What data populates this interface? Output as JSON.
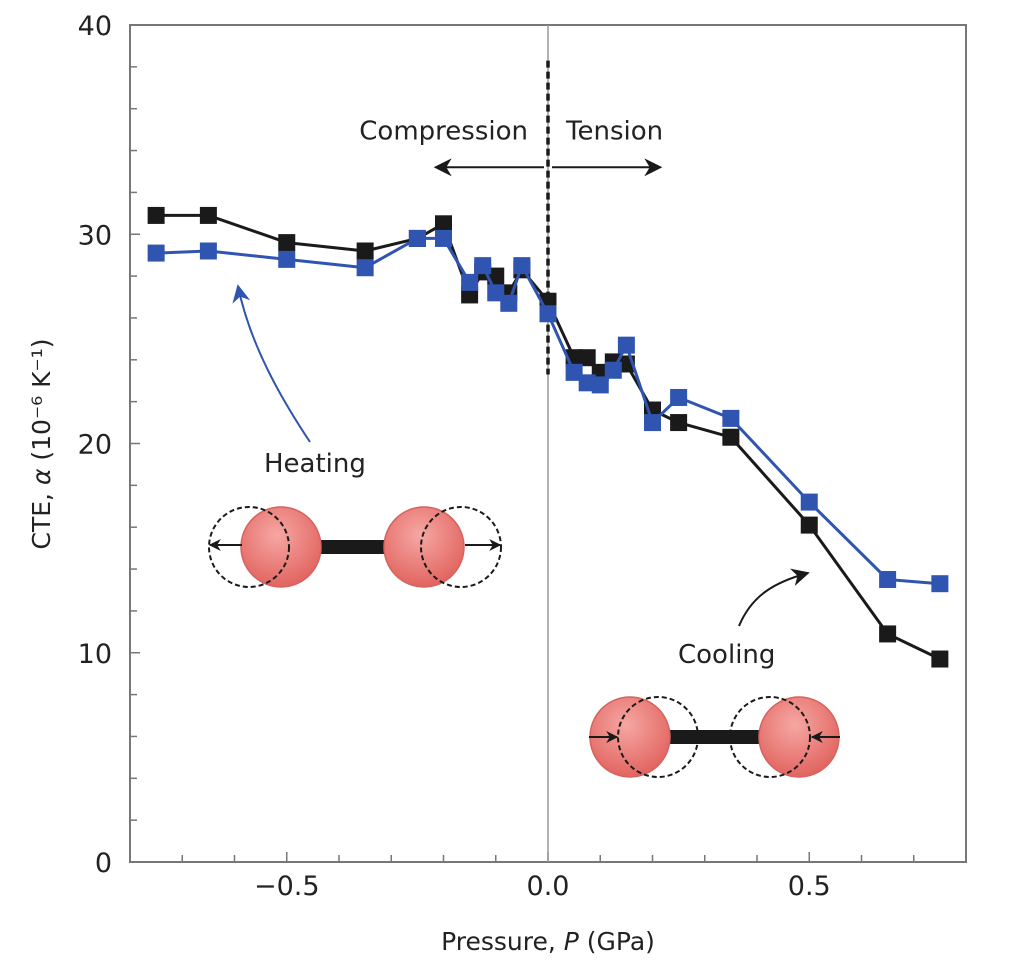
{
  "chart_data": {
    "type": "line",
    "title": "",
    "xlabel": "Pressure, P (GPa)",
    "xlabel_parts": {
      "prefix": "Pressure, ",
      "italic": "P",
      "suffix": " (GPa)"
    },
    "ylabel": "CTE, α (10⁻⁶ K⁻¹)",
    "ylabel_parts": {
      "prefix": "CTE, ",
      "italic": "α",
      "suffix": " (10⁻⁶ K⁻¹)"
    },
    "xlim": [
      -0.8,
      0.8
    ],
    "ylim": [
      0,
      40
    ],
    "x_major_ticks": [
      -0.5,
      0.0,
      0.5
    ],
    "x_tick_labels": [
      "−0.5",
      "0.0",
      "0.5"
    ],
    "x_minor_step": 0.1,
    "y_major_ticks": [
      0,
      10,
      20,
      30,
      40
    ],
    "y_tick_labels": [
      "0",
      "10",
      "20",
      "30",
      "40"
    ],
    "y_minor_step": 2,
    "grid": false,
    "legend": "none",
    "series": [
      {
        "name": "Black series",
        "color": "#1a1a1a",
        "marker": "square",
        "x": [
          -0.75,
          -0.65,
          -0.5,
          -0.35,
          -0.25,
          -0.2,
          -0.15,
          -0.125,
          -0.1,
          -0.075,
          -0.05,
          0.0,
          0.05,
          0.075,
          0.1,
          0.125,
          0.15,
          0.2,
          0.25,
          0.35,
          0.5,
          0.65,
          0.75
        ],
        "y": [
          30.9,
          30.9,
          29.6,
          29.2,
          29.8,
          30.5,
          27.1,
          28.2,
          28.0,
          27.2,
          28.3,
          26.8,
          24.1,
          24.1,
          23.4,
          23.9,
          23.8,
          21.6,
          21.0,
          20.3,
          16.1,
          10.9,
          9.7
        ]
      },
      {
        "name": "Blue series",
        "color": "#2f55b0",
        "marker": "square",
        "x": [
          -0.75,
          -0.65,
          -0.5,
          -0.35,
          -0.25,
          -0.2,
          -0.15,
          -0.125,
          -0.1,
          -0.075,
          -0.05,
          0.0,
          0.05,
          0.075,
          0.1,
          0.125,
          0.15,
          0.2,
          0.25,
          0.35,
          0.5,
          0.65,
          0.75
        ],
        "y": [
          29.1,
          29.2,
          28.8,
          28.4,
          29.8,
          29.8,
          27.7,
          28.5,
          27.2,
          26.7,
          28.5,
          26.2,
          23.4,
          22.9,
          22.8,
          23.5,
          24.7,
          21.0,
          22.2,
          21.2,
          17.2,
          13.5,
          13.3
        ]
      }
    ],
    "reference_lines": [
      {
        "name": "zero-pressure-line",
        "x": 0.0,
        "style": "solid",
        "color": "#999999"
      },
      {
        "name": "compression-tension-divider",
        "x": 0.0,
        "y_range": [
          23.3,
          38.3
        ],
        "style": "dashed",
        "color": "#1a1a1a"
      }
    ],
    "annotations": {
      "compression": {
        "text": "Compression",
        "direction": "left",
        "x_arrow_end": -0.2,
        "y": 33.2
      },
      "tension": {
        "text": "Tension",
        "direction": "right",
        "x_arrow_end": 0.2,
        "y": 33.2
      },
      "heating": {
        "text": "Heating",
        "arrow_color": "#2f55b0",
        "arrow_target": {
          "x": -0.6,
          "y": 27.3
        }
      },
      "cooling": {
        "text": "Cooling",
        "arrow_color": "#1a1a1a",
        "arrow_target": {
          "x": 0.5,
          "y": 13.8
        }
      }
    },
    "illustrations": [
      {
        "name": "expanding-molecule",
        "meaning": "bond lengthening on heating",
        "atom_color": "#e06a66"
      },
      {
        "name": "contracting-molecule",
        "meaning": "bond shortening on cooling",
        "atom_color": "#e06a66"
      }
    ]
  }
}
